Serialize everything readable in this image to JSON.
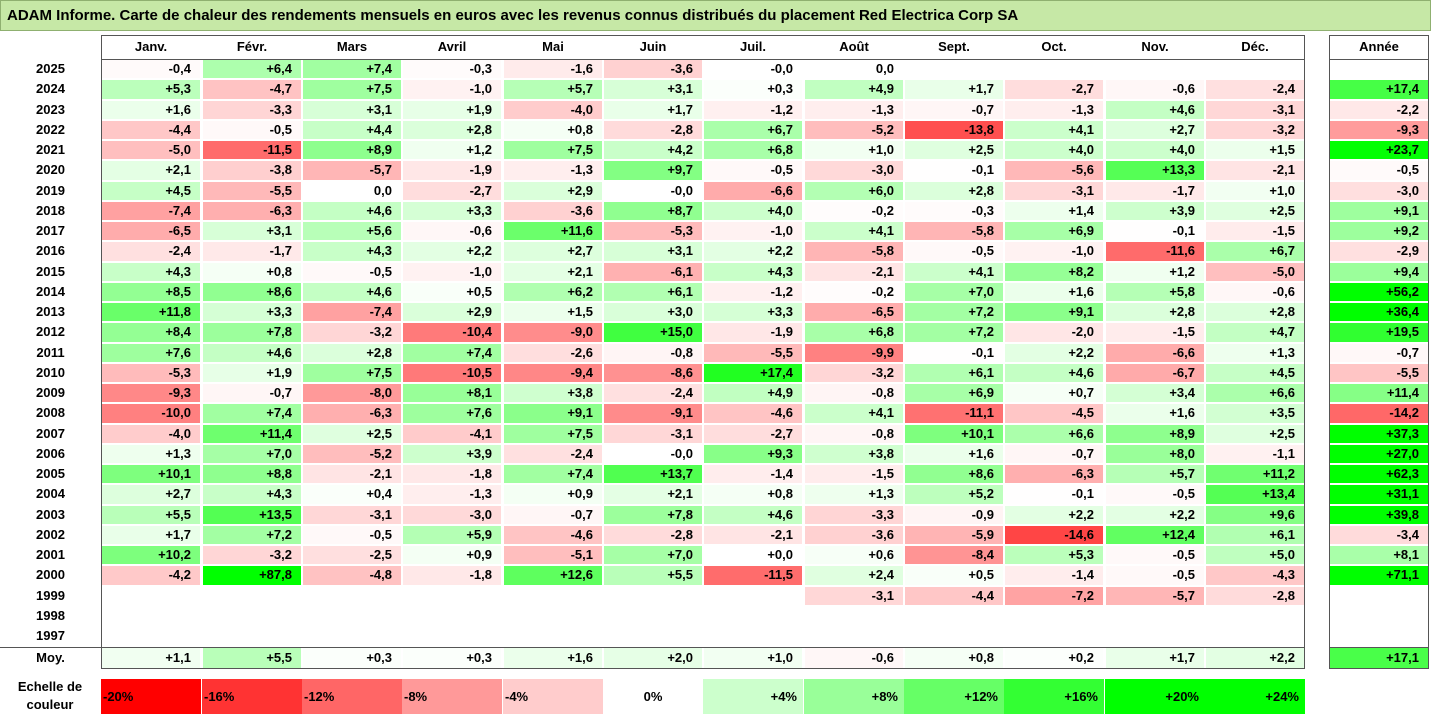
{
  "title": "ADAM Informe. Carte de chaleur des rendements mensuels en euros avec les revenus connus distribués du placement Red Electrica Corp SA",
  "chart_data": {
    "type": "heatmap",
    "columns": [
      "Janv.",
      "Févr.",
      "Mars",
      "Avril",
      "Mai",
      "Juin",
      "Juil.",
      "Août",
      "Sept.",
      "Oct.",
      "Nov.",
      "Déc."
    ],
    "annual_column": "Année",
    "rows": [
      {
        "year": "2025",
        "values": [
          "-0,4",
          "+6,4",
          "+7,4",
          "-0,3",
          "-1,6",
          "-3,6",
          "-0,0",
          "0,0",
          "",
          "",
          "",
          ""
        ],
        "annual": ""
      },
      {
        "year": "2024",
        "values": [
          "+5,3",
          "-4,7",
          "+7,5",
          "-1,0",
          "+5,7",
          "+3,1",
          "+0,3",
          "+4,9",
          "+1,7",
          "-2,7",
          "-0,6",
          "-2,4"
        ],
        "annual": "+17,4"
      },
      {
        "year": "2023",
        "values": [
          "+1,6",
          "-3,3",
          "+3,1",
          "+1,9",
          "-4,0",
          "+1,7",
          "-1,2",
          "-1,3",
          "-0,7",
          "-1,3",
          "+4,6",
          "-3,1"
        ],
        "annual": "-2,2"
      },
      {
        "year": "2022",
        "values": [
          "-4,4",
          "-0,5",
          "+4,4",
          "+2,8",
          "+0,8",
          "-2,8",
          "+6,7",
          "-5,2",
          "-13,8",
          "+4,1",
          "+2,7",
          "-3,2"
        ],
        "annual": "-9,3"
      },
      {
        "year": "2021",
        "values": [
          "-5,0",
          "-11,5",
          "+8,9",
          "+1,2",
          "+7,5",
          "+4,2",
          "+6,8",
          "+1,0",
          "+2,5",
          "+4,0",
          "+4,0",
          "+1,5"
        ],
        "annual": "+23,7"
      },
      {
        "year": "2020",
        "values": [
          "+2,1",
          "-3,8",
          "-5,7",
          "-1,9",
          "-1,3",
          "+9,7",
          "-0,5",
          "-3,0",
          "-0,1",
          "-5,6",
          "+13,3",
          "-2,1"
        ],
        "annual": "-0,5"
      },
      {
        "year": "2019",
        "values": [
          "+4,5",
          "-5,5",
          "0,0",
          "-2,7",
          "+2,9",
          "-0,0",
          "-6,6",
          "+6,0",
          "+2,8",
          "-3,1",
          "-1,7",
          "+1,0"
        ],
        "annual": "-3,0"
      },
      {
        "year": "2018",
        "values": [
          "-7,4",
          "-6,3",
          "+4,6",
          "+3,3",
          "-3,6",
          "+8,7",
          "+4,0",
          "-0,2",
          "-0,3",
          "+1,4",
          "+3,9",
          "+2,5"
        ],
        "annual": "+9,1"
      },
      {
        "year": "2017",
        "values": [
          "-6,5",
          "+3,1",
          "+5,6",
          "-0,6",
          "+11,6",
          "-5,3",
          "-1,0",
          "+4,1",
          "-5,8",
          "+6,9",
          "-0,1",
          "-1,5"
        ],
        "annual": "+9,2"
      },
      {
        "year": "2016",
        "values": [
          "-2,4",
          "-1,7",
          "+4,3",
          "+2,2",
          "+2,7",
          "+3,1",
          "+2,2",
          "-5,8",
          "-0,5",
          "-1,0",
          "-11,6",
          "+6,7"
        ],
        "annual": "-2,9"
      },
      {
        "year": "2015",
        "values": [
          "+4,3",
          "+0,8",
          "-0,5",
          "-1,0",
          "+2,1",
          "-6,1",
          "+4,3",
          "-2,1",
          "+4,1",
          "+8,2",
          "+1,2",
          "-5,0"
        ],
        "annual": "+9,4"
      },
      {
        "year": "2014",
        "values": [
          "+8,5",
          "+8,6",
          "+4,6",
          "+0,5",
          "+6,2",
          "+6,1",
          "-1,2",
          "-0,2",
          "+7,0",
          "+1,6",
          "+5,8",
          "-0,6"
        ],
        "annual": "+56,2"
      },
      {
        "year": "2013",
        "values": [
          "+11,8",
          "+3,3",
          "-7,4",
          "+2,9",
          "+1,5",
          "+3,0",
          "+3,3",
          "-6,5",
          "+7,2",
          "+9,1",
          "+2,8",
          "+2,8"
        ],
        "annual": "+36,4"
      },
      {
        "year": "2012",
        "values": [
          "+8,4",
          "+7,8",
          "-3,2",
          "-10,4",
          "-9,0",
          "+15,0",
          "-1,9",
          "+6,8",
          "+7,2",
          "-2,0",
          "-1,5",
          "+4,7"
        ],
        "annual": "+19,5"
      },
      {
        "year": "2011",
        "values": [
          "+7,6",
          "+4,6",
          "+2,8",
          "+7,4",
          "-2,6",
          "-0,8",
          "-5,5",
          "-9,9",
          "-0,1",
          "+2,2",
          "-6,6",
          "+1,3"
        ],
        "annual": "-0,7"
      },
      {
        "year": "2010",
        "values": [
          "-5,3",
          "+1,9",
          "+7,5",
          "-10,5",
          "-9,4",
          "-8,6",
          "+17,4",
          "-3,2",
          "+6,1",
          "+4,6",
          "-6,7",
          "+4,5"
        ],
        "annual": "-5,5"
      },
      {
        "year": "2009",
        "values": [
          "-9,3",
          "-0,7",
          "-8,0",
          "+8,1",
          "+3,8",
          "-2,4",
          "+4,9",
          "-0,8",
          "+6,9",
          "+0,7",
          "+3,4",
          "+6,6"
        ],
        "annual": "+11,4"
      },
      {
        "year": "2008",
        "values": [
          "-10,0",
          "+7,4",
          "-6,3",
          "+7,6",
          "+9,1",
          "-9,1",
          "-4,6",
          "+4,1",
          "-11,1",
          "-4,5",
          "+1,6",
          "+3,5"
        ],
        "annual": "-14,2"
      },
      {
        "year": "2007",
        "values": [
          "-4,0",
          "+11,4",
          "+2,5",
          "-4,1",
          "+7,5",
          "-3,1",
          "-2,7",
          "-0,8",
          "+10,1",
          "+6,6",
          "+8,9",
          "+2,5"
        ],
        "annual": "+37,3"
      },
      {
        "year": "2006",
        "values": [
          "+1,3",
          "+7,0",
          "-5,2",
          "+3,9",
          "-2,4",
          "-0,0",
          "+9,3",
          "+3,8",
          "+1,6",
          "-0,7",
          "+8,0",
          "-1,1"
        ],
        "annual": "+27,0"
      },
      {
        "year": "2005",
        "values": [
          "+10,1",
          "+8,8",
          "-2,1",
          "-1,8",
          "+7,4",
          "+13,7",
          "-1,4",
          "-1,5",
          "+8,6",
          "-6,3",
          "+5,7",
          "+11,2"
        ],
        "annual": "+62,3"
      },
      {
        "year": "2004",
        "values": [
          "+2,7",
          "+4,3",
          "+0,4",
          "-1,3",
          "+0,9",
          "+2,1",
          "+0,8",
          "+1,3",
          "+5,2",
          "-0,1",
          "-0,5",
          "+13,4"
        ],
        "annual": "+31,1"
      },
      {
        "year": "2003",
        "values": [
          "+5,5",
          "+13,5",
          "-3,1",
          "-3,0",
          "-0,7",
          "+7,8",
          "+4,6",
          "-3,3",
          "-0,9",
          "+2,2",
          "+2,2",
          "+9,6"
        ],
        "annual": "+39,8"
      },
      {
        "year": "2002",
        "values": [
          "+1,7",
          "+7,2",
          "-0,5",
          "+5,9",
          "-4,6",
          "-2,8",
          "-2,1",
          "-3,6",
          "-5,9",
          "-14,6",
          "+12,4",
          "+6,1"
        ],
        "annual": "-3,4"
      },
      {
        "year": "2001",
        "values": [
          "+10,2",
          "-3,2",
          "-2,5",
          "+0,9",
          "-5,1",
          "+7,0",
          "+0,0",
          "+0,6",
          "-8,4",
          "+5,3",
          "-0,5",
          "+5,0"
        ],
        "annual": "+8,1"
      },
      {
        "year": "2000",
        "values": [
          "-4,2",
          "+87,8",
          "-4,8",
          "-1,8",
          "+12,6",
          "+5,5",
          "-11,5",
          "+2,4",
          "+0,5",
          "-1,4",
          "-0,5",
          "-4,3"
        ],
        "annual": "+71,1"
      },
      {
        "year": "1999",
        "values": [
          "",
          "",
          "",
          "",
          "",
          "",
          "",
          "-3,1",
          "-4,4",
          "-7,2",
          "-5,7",
          "-2,8"
        ],
        "annual": ""
      },
      {
        "year": "1998",
        "values": [
          "",
          "",
          "",
          "",
          "",
          "",
          "",
          "",
          "",
          "",
          "",
          ""
        ],
        "annual": ""
      },
      {
        "year": "1997",
        "values": [
          "",
          "",
          "",
          "",
          "",
          "",
          "",
          "",
          "",
          "",
          "",
          ""
        ],
        "annual": ""
      }
    ],
    "average": {
      "label": "Moy.",
      "values": [
        "+1,1",
        "+5,5",
        "+0,3",
        "+0,3",
        "+1,6",
        "+2,0",
        "+1,0",
        "-0,6",
        "+0,8",
        "+0,2",
        "+1,7",
        "+2,2"
      ],
      "annual": "+17,1"
    },
    "color_scale": {
      "label": "Echelle de couleur",
      "stops": [
        {
          "label": "-20%",
          "value": -20,
          "color": "#ff0000"
        },
        {
          "label": "-16%",
          "value": -16,
          "color": "#ff3333"
        },
        {
          "label": "-12%",
          "value": -12,
          "color": "#ff6666"
        },
        {
          "label": "-8%",
          "value": -8,
          "color": "#ff9999"
        },
        {
          "label": "-4%",
          "value": -4,
          "color": "#ffcccc"
        },
        {
          "label": "0%",
          "value": 0,
          "color": "#ffffff"
        },
        {
          "label": "+4%",
          "value": 4,
          "color": "#ccffcc"
        },
        {
          "label": "+8%",
          "value": 8,
          "color": "#99ff99"
        },
        {
          "label": "+12%",
          "value": 12,
          "color": "#66ff66"
        },
        {
          "label": "+16%",
          "value": 16,
          "color": "#33ff33"
        },
        {
          "label": "+20%",
          "value": 20,
          "color": "#00ff00"
        },
        {
          "label": "+24%",
          "value": 24,
          "color": "#00ff00"
        }
      ]
    }
  }
}
